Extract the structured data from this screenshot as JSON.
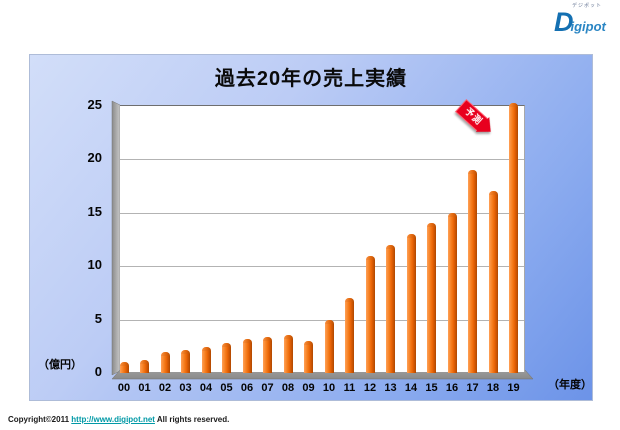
{
  "page": {
    "logo": {
      "brand_d": "D",
      "brand_rest": "igipot",
      "tagline": "デジポット"
    },
    "footer": {
      "copyright_prefix": "Copyright©2011",
      "link": "http://www.digipot.net",
      "suffix": "All rights reserved."
    }
  },
  "chart_data": {
    "type": "bar",
    "title": "過去20年の売上実績",
    "categories": [
      "00",
      "01",
      "02",
      "03",
      "04",
      "05",
      "06",
      "07",
      "08",
      "09",
      "10",
      "11",
      "12",
      "13",
      "14",
      "15",
      "16",
      "17",
      "18",
      "19"
    ],
    "values": [
      1.0,
      1.2,
      2.0,
      2.2,
      2.4,
      2.8,
      3.2,
      3.4,
      3.6,
      3.0,
      5.0,
      7.0,
      11.0,
      12.0,
      13.0,
      14.0,
      15.0,
      19.0,
      17.0,
      25.3
    ],
    "xlabel": "（年度）",
    "ylabel": "（億円）",
    "ylim": [
      0,
      25
    ],
    "yticks": [
      0,
      5,
      10,
      15,
      20,
      25
    ],
    "gridlines": [
      5,
      10,
      15,
      20
    ],
    "grid": "horizontal",
    "legend": "none",
    "annotation": {
      "text": "予測",
      "target_category": "19"
    },
    "bar_color": "#EA6406",
    "annotation_color": "#E8001E",
    "background_gradient": [
      "#D2DEF9",
      "#6C93E8"
    ]
  }
}
